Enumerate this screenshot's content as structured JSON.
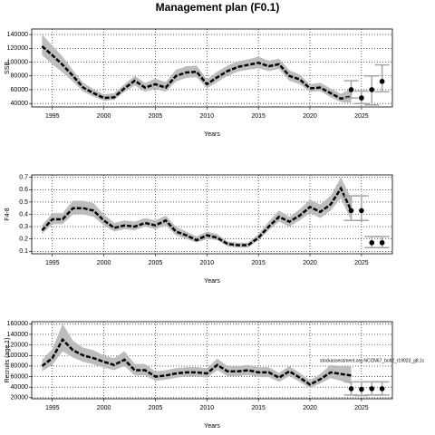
{
  "title": "Management plan (F0.1)",
  "chart_data": [
    {
      "type": "line",
      "xlabel": "Years",
      "ylabel": "SSB",
      "grid": true,
      "color": "#000000",
      "band_color": "#bdbdbd",
      "bar_color": "#a6a6a6",
      "xlim": [
        1993,
        2028
      ],
      "xticks": [
        1995,
        2000,
        2005,
        2010,
        2015,
        2020,
        2025
      ],
      "ylim": [
        35000,
        148000
      ],
      "yticks": [
        40000,
        60000,
        80000,
        100000,
        120000,
        140000
      ],
      "x": [
        1994,
        1995,
        1996,
        1997,
        1998,
        1999,
        2000,
        2001,
        2002,
        2003,
        2004,
        2005,
        2006,
        2007,
        2008,
        2009,
        2010,
        2011,
        2012,
        2013,
        2014,
        2015,
        2016,
        2017,
        2018,
        2019,
        2020,
        2021,
        2022,
        2023,
        2024
      ],
      "values": [
        123000,
        110000,
        96000,
        80000,
        63000,
        55000,
        48000,
        49000,
        62000,
        73000,
        63000,
        68000,
        63000,
        80000,
        85000,
        86000,
        68000,
        78000,
        87000,
        93000,
        96000,
        99000,
        94000,
        97000,
        80000,
        75000,
        62000,
        63000,
        55000,
        47000,
        50000
      ],
      "upper": [
        140000,
        124000,
        108000,
        88000,
        70000,
        61000,
        53000,
        55000,
        68000,
        80000,
        70000,
        76000,
        71000,
        89000,
        94000,
        95000,
        75000,
        86000,
        95000,
        101000,
        104000,
        108000,
        102000,
        105000,
        88000,
        82000,
        68000,
        70000,
        62000,
        54000,
        62000
      ],
      "lower": [
        110000,
        97000,
        85000,
        72000,
        57000,
        50000,
        44000,
        45000,
        57000,
        66000,
        57000,
        61000,
        57000,
        72000,
        77000,
        78000,
        62000,
        71000,
        80000,
        86000,
        89000,
        91000,
        87000,
        90000,
        73000,
        68000,
        57000,
        58000,
        49000,
        42000,
        41000
      ],
      "projection": {
        "x": [
          2024,
          2025,
          2026,
          2027
        ],
        "values": [
          60000,
          48000,
          60000,
          72000
        ],
        "lower": [
          48000,
          40000,
          38000,
          57000
        ],
        "upper": [
          73000,
          58000,
          80000,
          96000
        ]
      }
    },
    {
      "type": "line",
      "xlabel": "Years",
      "ylabel": "F4-8",
      "grid": true,
      "color": "#000000",
      "band_color": "#bdbdbd",
      "bar_color": "#a6a6a6",
      "xlim": [
        1993,
        2028
      ],
      "xticks": [
        1995,
        2000,
        2005,
        2010,
        2015,
        2020,
        2025
      ],
      "ylim": [
        0.08,
        0.72
      ],
      "yticks": [
        0.1,
        0.2,
        0.3,
        0.4,
        0.5,
        0.6,
        0.7
      ],
      "x": [
        1994,
        1995,
        1996,
        1997,
        1998,
        1999,
        2000,
        2001,
        2002,
        2003,
        2004,
        2005,
        2006,
        2007,
        2008,
        2009,
        2010,
        2011,
        2012,
        2013,
        2014,
        2015,
        2016,
        2017,
        2018,
        2019,
        2020,
        2021,
        2022,
        2023,
        2024
      ],
      "values": [
        0.27,
        0.36,
        0.36,
        0.45,
        0.45,
        0.43,
        0.35,
        0.29,
        0.31,
        0.3,
        0.33,
        0.31,
        0.35,
        0.26,
        0.23,
        0.19,
        0.23,
        0.21,
        0.16,
        0.15,
        0.15,
        0.21,
        0.3,
        0.38,
        0.34,
        0.39,
        0.46,
        0.42,
        0.48,
        0.61,
        0.43
      ],
      "upper": [
        0.31,
        0.41,
        0.41,
        0.51,
        0.51,
        0.49,
        0.4,
        0.33,
        0.35,
        0.34,
        0.37,
        0.35,
        0.39,
        0.3,
        0.26,
        0.22,
        0.26,
        0.24,
        0.18,
        0.17,
        0.17,
        0.24,
        0.34,
        0.43,
        0.38,
        0.44,
        0.52,
        0.48,
        0.55,
        0.7,
        0.53
      ],
      "lower": [
        0.24,
        0.32,
        0.32,
        0.4,
        0.4,
        0.38,
        0.31,
        0.26,
        0.28,
        0.27,
        0.3,
        0.28,
        0.31,
        0.23,
        0.2,
        0.17,
        0.2,
        0.19,
        0.14,
        0.13,
        0.13,
        0.19,
        0.27,
        0.34,
        0.3,
        0.35,
        0.41,
        0.37,
        0.43,
        0.53,
        0.35
      ],
      "projection": {
        "x": [
          2024,
          2025,
          2026,
          2027
        ],
        "values": [
          0.43,
          0.43,
          0.17,
          0.17
        ],
        "lower": [
          0.35,
          0.35,
          0.13,
          0.13
        ],
        "upper": [
          0.55,
          0.55,
          0.22,
          0.22
        ]
      }
    },
    {
      "type": "line",
      "xlabel": "Years",
      "ylabel": "Recruits (age 1)",
      "grid": true,
      "color": "#000000",
      "band_color": "#bdbdbd",
      "bar_color": "#a6a6a6",
      "annotation": "stockassessment.org NCCN67_bolt2_r19023_g8.1c",
      "xlim": [
        1993,
        2028
      ],
      "xticks": [
        1995,
        2000,
        2005,
        2010,
        2015,
        2020,
        2025
      ],
      "ylim": [
        18000,
        164000
      ],
      "yticks": [
        20000,
        40000,
        60000,
        80000,
        100000,
        120000,
        140000,
        160000
      ],
      "x": [
        1994,
        1995,
        1996,
        1997,
        1998,
        1999,
        2000,
        2001,
        2002,
        2003,
        2004,
        2005,
        2006,
        2007,
        2008,
        2009,
        2010,
        2011,
        2012,
        2013,
        2014,
        2015,
        2016,
        2017,
        2018,
        2019,
        2020,
        2021,
        2022,
        2023,
        2024
      ],
      "values": [
        80000,
        95000,
        130000,
        110000,
        100000,
        95000,
        88000,
        82000,
        92000,
        72000,
        72000,
        60000,
        62000,
        66000,
        68000,
        68000,
        66000,
        82000,
        70000,
        70000,
        72000,
        68000,
        68000,
        58000,
        70000,
        58000,
        45000,
        55000,
        68000,
        65000,
        62000
      ],
      "upper": [
        92000,
        112000,
        160000,
        128000,
        115000,
        110000,
        100000,
        95000,
        108000,
        84000,
        84000,
        70000,
        72000,
        76000,
        78000,
        78000,
        76000,
        94000,
        80000,
        80000,
        82000,
        78000,
        78000,
        67000,
        80000,
        67000,
        53000,
        65000,
        82000,
        80000,
        80000
      ],
      "lower": [
        70000,
        82000,
        108000,
        96000,
        88000,
        83000,
        77000,
        72000,
        80000,
        62000,
        62000,
        52000,
        54000,
        58000,
        60000,
        60000,
        58000,
        72000,
        61000,
        61000,
        63000,
        59000,
        59000,
        50000,
        61000,
        50000,
        38000,
        47000,
        57000,
        52000,
        46000
      ],
      "projection": {
        "x": [
          2024,
          2025,
          2026,
          2027
        ],
        "values": [
          37000,
          36000,
          37000,
          37000
        ],
        "lower": [
          25000,
          24000,
          25000,
          25000
        ],
        "upper": [
          50000,
          50000,
          50000,
          50000
        ]
      }
    }
  ]
}
